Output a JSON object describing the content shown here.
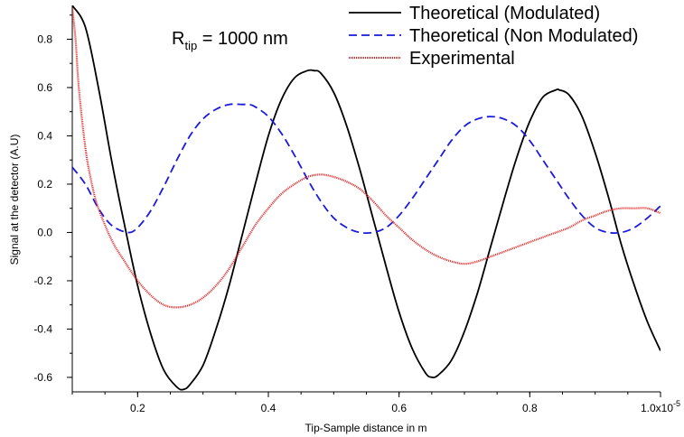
{
  "chart_data": {
    "type": "line",
    "xlabel": "Tip-Sample distance in m",
    "ylabel": "Signal at the detector (A.U)",
    "xlim": [
      0.1,
      1.0
    ],
    "ylim": [
      -0.66,
      0.94
    ],
    "x_ticks": [
      0.2,
      0.4,
      0.6,
      0.8,
      1.0
    ],
    "x_tick_labels": [
      "0.2",
      "0.4",
      "0.6",
      "0.8",
      "1.0x10"
    ],
    "x_tick_exponent": "-5",
    "y_ticks": [
      -0.6,
      -0.4,
      -0.2,
      0.0,
      0.2,
      0.4,
      0.6,
      0.8
    ],
    "y_tick_labels": [
      "-0.6",
      "-0.4",
      "-0.2",
      "0.0",
      "0.2",
      "0.4",
      "0.6",
      "0.8"
    ],
    "grid": false,
    "legend_position": "top-right",
    "annotation": {
      "main": "R",
      "sub": "tip",
      "rest": " = 1000 nm"
    },
    "series": [
      {
        "name": "Theoretical (Modulated)",
        "color": "#000000",
        "style": "solid",
        "x": [
          0.1,
          0.12,
          0.14,
          0.16,
          0.18,
          0.2,
          0.22,
          0.24,
          0.26,
          0.27,
          0.28,
          0.3,
          0.32,
          0.34,
          0.36,
          0.38,
          0.4,
          0.42,
          0.44,
          0.46,
          0.47,
          0.48,
          0.5,
          0.52,
          0.54,
          0.56,
          0.58,
          0.6,
          0.62,
          0.64,
          0.65,
          0.66,
          0.68,
          0.7,
          0.72,
          0.74,
          0.76,
          0.78,
          0.8,
          0.82,
          0.84,
          0.845,
          0.86,
          0.88,
          0.9,
          0.92,
          0.94,
          0.96,
          0.98,
          1.0
        ],
        "y": [
          0.94,
          0.85,
          0.6,
          0.3,
          0.03,
          -0.22,
          -0.42,
          -0.57,
          -0.64,
          -0.65,
          -0.63,
          -0.55,
          -0.4,
          -0.22,
          -0.01,
          0.2,
          0.4,
          0.55,
          0.64,
          0.67,
          0.67,
          0.66,
          0.58,
          0.44,
          0.26,
          0.06,
          -0.14,
          -0.33,
          -0.48,
          -0.58,
          -0.6,
          -0.59,
          -0.53,
          -0.41,
          -0.25,
          -0.06,
          0.13,
          0.31,
          0.46,
          0.56,
          0.59,
          0.59,
          0.57,
          0.48,
          0.33,
          0.15,
          -0.05,
          -0.22,
          -0.37,
          -0.49
        ]
      },
      {
        "name": "Theoretical (Non Modulated)",
        "color": "#1a1adc",
        "style": "dashed",
        "x": [
          0.1,
          0.12,
          0.14,
          0.16,
          0.185,
          0.2,
          0.22,
          0.24,
          0.26,
          0.28,
          0.3,
          0.32,
          0.34,
          0.36,
          0.37,
          0.38,
          0.4,
          0.42,
          0.44,
          0.46,
          0.48,
          0.5,
          0.52,
          0.54,
          0.56,
          0.58,
          0.6,
          0.62,
          0.64,
          0.66,
          0.68,
          0.7,
          0.72,
          0.74,
          0.76,
          0.78,
          0.8,
          0.82,
          0.84,
          0.86,
          0.88,
          0.9,
          0.92,
          0.94,
          0.96,
          0.98,
          1.0
        ],
        "y": [
          0.27,
          0.2,
          0.1,
          0.03,
          0.0,
          0.02,
          0.09,
          0.19,
          0.3,
          0.4,
          0.47,
          0.51,
          0.53,
          0.53,
          0.53,
          0.52,
          0.48,
          0.41,
          0.32,
          0.22,
          0.13,
          0.06,
          0.02,
          0.0,
          0.0,
          0.02,
          0.07,
          0.14,
          0.22,
          0.3,
          0.38,
          0.44,
          0.47,
          0.48,
          0.47,
          0.44,
          0.38,
          0.3,
          0.22,
          0.14,
          0.07,
          0.02,
          0.0,
          0.0,
          0.02,
          0.06,
          0.11
        ]
      },
      {
        "name": "Experimental",
        "color": "#e02020",
        "style": "dotted",
        "x": [
          0.1,
          0.105,
          0.11,
          0.12,
          0.13,
          0.14,
          0.16,
          0.18,
          0.2,
          0.22,
          0.24,
          0.26,
          0.28,
          0.3,
          0.32,
          0.34,
          0.36,
          0.38,
          0.4,
          0.42,
          0.44,
          0.46,
          0.48,
          0.5,
          0.52,
          0.54,
          0.56,
          0.58,
          0.6,
          0.62,
          0.64,
          0.66,
          0.68,
          0.7,
          0.72,
          0.74,
          0.76,
          0.78,
          0.8,
          0.82,
          0.84,
          0.86,
          0.88,
          0.9,
          0.92,
          0.94,
          0.96,
          0.98,
          1.0
        ],
        "y": [
          0.93,
          0.8,
          0.6,
          0.35,
          0.2,
          0.1,
          -0.03,
          -0.12,
          -0.2,
          -0.26,
          -0.3,
          -0.31,
          -0.3,
          -0.27,
          -0.22,
          -0.15,
          -0.06,
          0.03,
          0.1,
          0.16,
          0.2,
          0.23,
          0.24,
          0.23,
          0.21,
          0.18,
          0.13,
          0.07,
          0.02,
          -0.03,
          -0.07,
          -0.1,
          -0.12,
          -0.13,
          -0.12,
          -0.1,
          -0.08,
          -0.06,
          -0.04,
          -0.02,
          0.0,
          0.02,
          0.05,
          0.07,
          0.09,
          0.1,
          0.1,
          0.1,
          0.08
        ]
      }
    ]
  }
}
